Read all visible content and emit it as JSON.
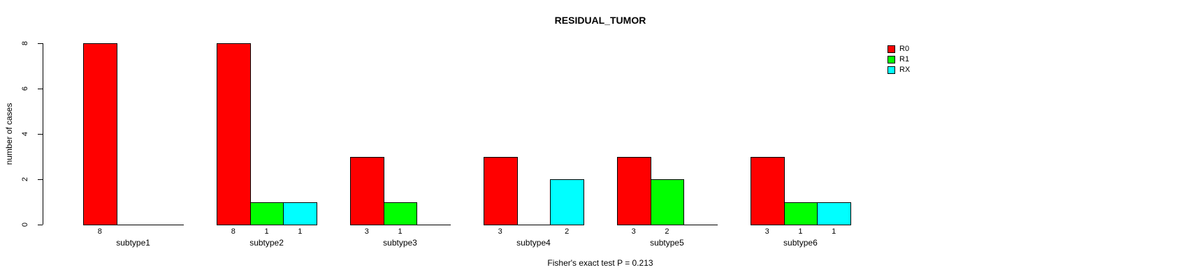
{
  "chart_data": {
    "type": "bar",
    "title": "RESIDUAL_TUMOR",
    "ylabel": "number of cases",
    "annotation": "Fisher's exact test P = 0.213",
    "categories": [
      "subtype1",
      "subtype2",
      "subtype3",
      "subtype4",
      "subtype5",
      "subtype6"
    ],
    "series": [
      {
        "name": "R0",
        "color": "#ff0000",
        "values": [
          8,
          8,
          3,
          3,
          3,
          3
        ]
      },
      {
        "name": "R1",
        "color": "#00ff00",
        "values": [
          0,
          1,
          1,
          0,
          2,
          1
        ]
      },
      {
        "name": "RX",
        "color": "#00ffff",
        "values": [
          0,
          1,
          0,
          2,
          0,
          1
        ]
      }
    ],
    "ylim": [
      0,
      8
    ],
    "yticks": [
      0,
      2,
      4,
      6,
      8
    ],
    "bar_value_labels": true,
    "grid": false,
    "legend_position": "right"
  }
}
